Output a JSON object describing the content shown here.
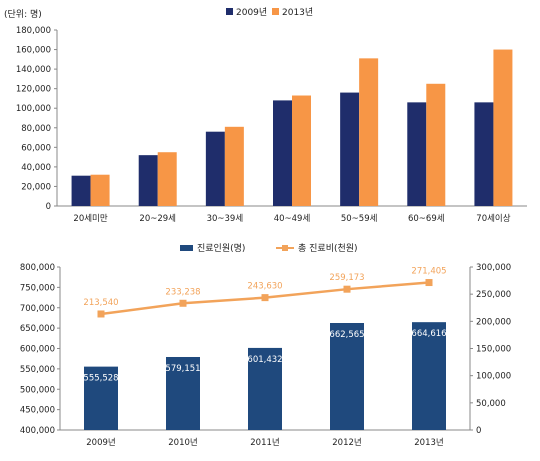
{
  "colors": {
    "navy": "#1f2d6b",
    "orange": "#f79646",
    "blue": "#1f497d",
    "line_orange": "#f2a35a",
    "axis": "#888888",
    "text": "#222222"
  },
  "chart_data": [
    {
      "type": "bar",
      "unit_label": "(단위: 명)",
      "categories": [
        "20세미만",
        "20~29세",
        "30~39세",
        "40~49세",
        "50~59세",
        "60~69세",
        "70세이상"
      ],
      "series": [
        {
          "name": "2009년",
          "color": "#1f2d6b",
          "values": [
            31000,
            52000,
            76000,
            108000,
            116000,
            106000,
            106000
          ]
        },
        {
          "name": "2013년",
          "color": "#f79646",
          "values": [
            32000,
            55000,
            81000,
            113000,
            151000,
            125000,
            160000
          ]
        }
      ],
      "ylim": [
        0,
        180000
      ],
      "yticks": [
        "0",
        "20,000",
        "40,000",
        "60,000",
        "80,000",
        "100,000",
        "120,000",
        "140,000",
        "160,000",
        "180,000"
      ],
      "legend": "top-center",
      "grid": false
    },
    {
      "type": "bar+line",
      "categories": [
        "2009년",
        "2010년",
        "2011년",
        "2012년",
        "2013년"
      ],
      "series": [
        {
          "name": "진료인원(명)",
          "type": "bar",
          "axis": "left",
          "color": "#1f497d",
          "values": [
            555528,
            579151,
            601432,
            662565,
            664616
          ],
          "labels": [
            "555,528",
            "579,151",
            "601,432",
            "662,565",
            "664,616"
          ]
        },
        {
          "name": "총 진료비(천원)",
          "type": "line",
          "axis": "right",
          "color": "#f2a35a",
          "values": [
            213540,
            233238,
            243630,
            259173,
            271405
          ],
          "labels": [
            "213,540",
            "233,238",
            "243,630",
            "259,173",
            "271,405"
          ]
        }
      ],
      "ylim_left": [
        400000,
        800000
      ],
      "ylim_right": [
        0,
        300000
      ],
      "yticks_left": [
        "400,000",
        "450,000",
        "500,000",
        "550,000",
        "600,000",
        "650,000",
        "700,000",
        "750,000",
        "800,000"
      ],
      "yticks_right": [
        "0",
        "50,000",
        "100,000",
        "150,000",
        "200,000",
        "250,000",
        "300,000"
      ],
      "legend": "top-center",
      "grid": false
    }
  ]
}
